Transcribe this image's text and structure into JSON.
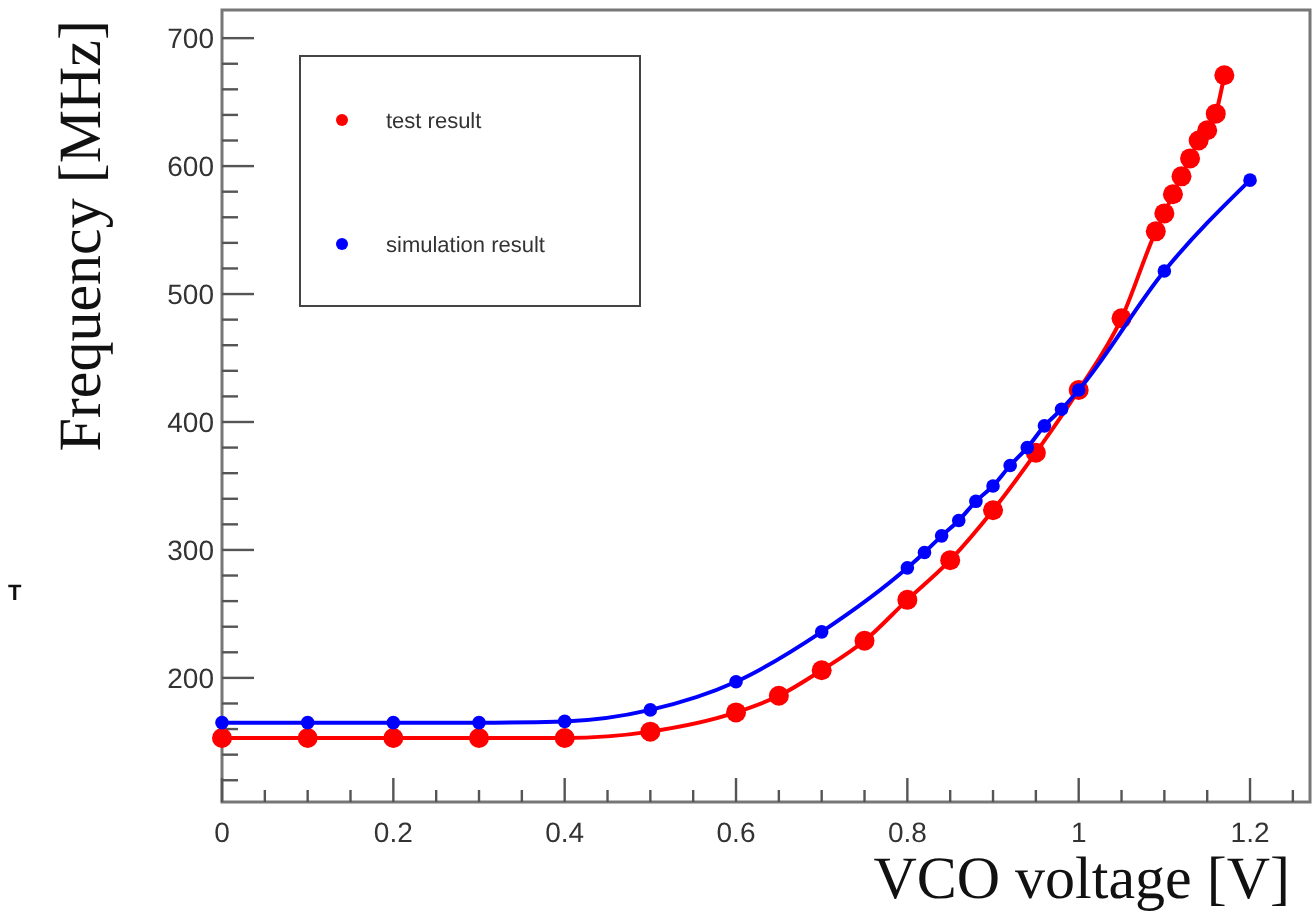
{
  "chart_data": {
    "type": "line",
    "xlabel": "VCO voltage [V]",
    "ylabel": "Frequency [MHz]",
    "annotations": [
      "T"
    ],
    "xlim": [
      0,
      1.27
    ],
    "ylim": [
      103,
      722
    ],
    "xticks": [
      0,
      {
        "value": 0.05,
        "label": null
      },
      0.2,
      {
        "value": 0.1,
        "label": null
      },
      {
        "value": 0.15,
        "label": null
      },
      {
        "value": 0.25,
        "label": null
      },
      {
        "value": 0.3,
        "label": null
      },
      {
        "value": 0.35,
        "label": null
      },
      0.4,
      {
        "value": 0.45,
        "label": null
      },
      {
        "value": 0.5,
        "label": null
      },
      {
        "value": 0.55,
        "label": null
      },
      0.6,
      {
        "value": 0.65,
        "label": null
      },
      {
        "value": 0.7,
        "label": null
      },
      {
        "value": 0.75,
        "label": null
      },
      0.8,
      {
        "value": 0.85,
        "label": null
      },
      {
        "value": 0.9,
        "label": null
      },
      {
        "value": 0.95,
        "label": null
      },
      1,
      {
        "value": 1.05,
        "label": null
      },
      {
        "value": 1.1,
        "label": null
      },
      {
        "value": 1.15,
        "label": null
      },
      1.2,
      {
        "value": 1.25,
        "label": null
      }
    ],
    "yticks": [
      {
        "value": 120,
        "label": null
      },
      {
        "value": 140,
        "label": null
      },
      {
        "value": 160,
        "label": null
      },
      {
        "value": 180,
        "label": null
      },
      200,
      {
        "value": 220,
        "label": null
      },
      {
        "value": 240,
        "label": null
      },
      {
        "value": 260,
        "label": null
      },
      {
        "value": 280,
        "label": null
      },
      300,
      {
        "value": 320,
        "label": null
      },
      {
        "value": 340,
        "label": null
      },
      {
        "value": 360,
        "label": null
      },
      {
        "value": 380,
        "label": null
      },
      400,
      {
        "value": 420,
        "label": null
      },
      {
        "value": 440,
        "label": null
      },
      {
        "value": 460,
        "label": null
      },
      {
        "value": 480,
        "label": null
      },
      500,
      {
        "value": 520,
        "label": null
      },
      {
        "value": 540,
        "label": null
      },
      {
        "value": 560,
        "label": null
      },
      {
        "value": 580,
        "label": null
      },
      600,
      {
        "value": 620,
        "label": null
      },
      {
        "value": 640,
        "label": null
      },
      {
        "value": 660,
        "label": null
      },
      {
        "value": 680,
        "label": null
      },
      700
    ],
    "grid": false,
    "legend": "top left",
    "marker": "circle",
    "line_style": "solid",
    "series": [
      {
        "name": "test result",
        "color": "#ff0000",
        "x": [
          0,
          0.1,
          0.2,
          0.3,
          0.4,
          0.5,
          0.6,
          0.65,
          0.7,
          0.75,
          0.8,
          0.85,
          0.9,
          0.95,
          1,
          1.05,
          1.09,
          1.1,
          1.11,
          1.12,
          1.13,
          1.14,
          1.15,
          1.16,
          1.17
        ],
        "values": [
          153,
          153,
          153,
          153,
          153,
          158,
          173,
          186,
          206,
          229,
          261,
          292,
          331,
          376,
          425,
          481,
          549,
          563,
          578,
          592,
          606,
          620,
          628,
          641,
          671
        ]
      },
      {
        "name": "simulation result",
        "color": "#0000ff",
        "x": [
          0,
          0.1,
          0.2,
          0.3,
          0.4,
          0.5,
          0.6,
          0.7,
          0.8,
          0.82,
          0.84,
          0.86,
          0.88,
          0.9,
          0.92,
          0.94,
          0.96,
          0.98,
          1,
          1.1,
          1.2
        ],
        "values": [
          165,
          165,
          165,
          165,
          166,
          175,
          197,
          236,
          286,
          298,
          311,
          323,
          338,
          350,
          366,
          380,
          397,
          410,
          425,
          518,
          589
        ]
      }
    ]
  }
}
